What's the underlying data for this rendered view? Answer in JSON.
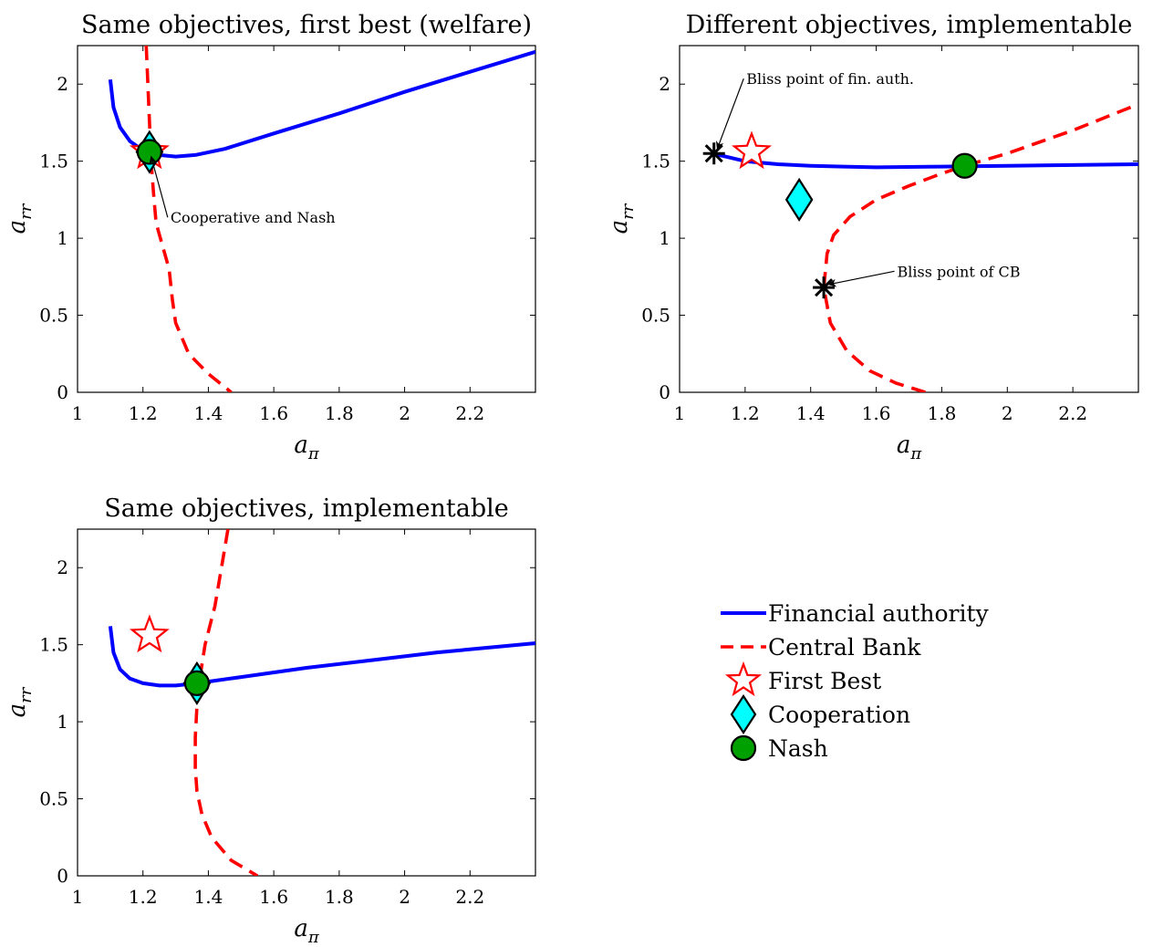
{
  "chart_data": [
    {
      "type": "line",
      "title": "Same objectives, first best (welfare)",
      "xlabel": "a_π",
      "ylabel": "a_rr",
      "xlim": [
        1,
        2.4
      ],
      "ylim": [
        0,
        2.25
      ],
      "xticks": [
        1,
        1.2,
        1.4,
        1.6,
        1.8,
        2,
        2.2
      ],
      "xtick_labels": [
        "1",
        "1.2",
        "1.4",
        "1.6",
        "1.8",
        "2",
        "2.2"
      ],
      "yticks": [
        0,
        0.5,
        1,
        1.5,
        2
      ],
      "ytick_labels": [
        "0",
        "0.5",
        "1",
        "1.5",
        "2"
      ],
      "series": [
        {
          "name": "Financial authority",
          "style": "solid",
          "color": "#0000ff",
          "x": [
            1.1,
            1.11,
            1.13,
            1.16,
            1.2,
            1.25,
            1.3,
            1.36,
            1.45,
            1.6,
            1.8,
            2.0,
            2.2,
            2.4
          ],
          "y": [
            2.03,
            1.85,
            1.72,
            1.63,
            1.57,
            1.54,
            1.53,
            1.54,
            1.58,
            1.68,
            1.81,
            1.95,
            2.08,
            2.21
          ]
        },
        {
          "name": "Central Bank",
          "style": "dashed",
          "color": "#ff0000",
          "x": [
            1.21,
            1.215,
            1.22,
            1.225,
            1.232,
            1.24,
            1.26,
            1.28,
            1.29,
            1.3,
            1.34,
            1.4,
            1.47
          ],
          "y": [
            2.25,
            2.0,
            1.75,
            1.5,
            1.3,
            1.1,
            0.95,
            0.8,
            0.6,
            0.45,
            0.25,
            0.12,
            0
          ]
        }
      ],
      "markers": {
        "first_best": [
          1.22,
          1.56
        ],
        "cooperation": [
          1.22,
          1.56
        ],
        "nash": [
          1.22,
          1.56
        ],
        "star_bliss": []
      },
      "annotations": [
        {
          "text": "Cooperative and Nash",
          "point": [
            1.225,
            1.53
          ],
          "text_at": [
            1.27,
            1.1
          ]
        }
      ]
    },
    {
      "type": "line",
      "title": "Different objectives, implementable",
      "xlabel": "a_π",
      "ylabel": "a_rr",
      "xlim": [
        1,
        2.4
      ],
      "ylim": [
        0,
        2.25
      ],
      "xticks": [
        1,
        1.2,
        1.4,
        1.6,
        1.8,
        2,
        2.2
      ],
      "xtick_labels": [
        "1",
        "1.2",
        "1.4",
        "1.6",
        "1.8",
        "2",
        "2.2"
      ],
      "yticks": [
        0,
        0.5,
        1,
        1.5,
        2
      ],
      "ytick_labels": [
        "0",
        "0.5",
        "1",
        "1.5",
        "2"
      ],
      "series": [
        {
          "name": "Financial authority",
          "style": "solid",
          "color": "#0000ff",
          "x": [
            1.1,
            1.2,
            1.3,
            1.4,
            1.5,
            1.6,
            1.8,
            2.0,
            2.2,
            2.4
          ],
          "y": [
            1.55,
            1.5,
            1.48,
            1.47,
            1.465,
            1.46,
            1.465,
            1.47,
            1.475,
            1.48
          ]
        },
        {
          "name": "Central Bank",
          "style": "dashed",
          "color": "#ff0000",
          "x": [
            1.75,
            1.66,
            1.58,
            1.51,
            1.46,
            1.44,
            1.45,
            1.47,
            1.52,
            1.6,
            1.7,
            1.8,
            1.87,
            2.0,
            2.2,
            2.4
          ],
          "y": [
            0,
            0.06,
            0.14,
            0.27,
            0.45,
            0.68,
            0.9,
            1.02,
            1.14,
            1.25,
            1.34,
            1.42,
            1.47,
            1.55,
            1.7,
            1.87
          ]
        }
      ],
      "markers": {
        "first_best": [
          1.22,
          1.56
        ],
        "cooperation": [
          1.365,
          1.25
        ],
        "nash": [
          1.87,
          1.47
        ],
        "star_bliss": [
          [
            1.105,
            1.55
          ],
          [
            1.44,
            0.68
          ]
        ]
      },
      "annotations": [
        {
          "text": "Bliss point of fin. auth.",
          "point": [
            1.115,
            1.58
          ],
          "text_at": [
            1.19,
            2.0
          ]
        },
        {
          "text": "Bliss point of CB",
          "point": [
            1.455,
            0.7
          ],
          "text_at": [
            1.65,
            0.75
          ]
        }
      ]
    },
    {
      "type": "line",
      "title": "Same objectives, implementable",
      "xlabel": "a_π",
      "ylabel": "a_rr",
      "xlim": [
        1,
        2.4
      ],
      "ylim": [
        0,
        2.25
      ],
      "xticks": [
        1,
        1.2,
        1.4,
        1.6,
        1.8,
        2,
        2.2
      ],
      "xtick_labels": [
        "1",
        "1.2",
        "1.4",
        "1.6",
        "1.8",
        "2",
        "2.2"
      ],
      "yticks": [
        0,
        0.5,
        1,
        1.5,
        2
      ],
      "ytick_labels": [
        "0",
        "0.5",
        "1",
        "1.5",
        "2"
      ],
      "series": [
        {
          "name": "Financial authority",
          "style": "solid",
          "color": "#0000ff",
          "x": [
            1.1,
            1.11,
            1.13,
            1.16,
            1.2,
            1.25,
            1.3,
            1.365,
            1.5,
            1.7,
            1.9,
            2.1,
            2.3,
            2.4
          ],
          "y": [
            1.62,
            1.45,
            1.34,
            1.28,
            1.25,
            1.235,
            1.235,
            1.25,
            1.29,
            1.35,
            1.4,
            1.45,
            1.49,
            1.51
          ]
        },
        {
          "name": "Central Bank",
          "style": "dashed",
          "color": "#ff0000",
          "x": [
            1.46,
            1.44,
            1.42,
            1.39,
            1.375,
            1.365,
            1.36,
            1.36,
            1.365,
            1.38,
            1.41,
            1.47,
            1.55
          ],
          "y": [
            2.25,
            2.0,
            1.75,
            1.5,
            1.3,
            1.1,
            0.9,
            0.7,
            0.55,
            0.4,
            0.25,
            0.1,
            0
          ]
        }
      ],
      "markers": {
        "first_best": [
          1.22,
          1.56
        ],
        "cooperation": [
          1.365,
          1.25
        ],
        "nash": [
          1.365,
          1.25
        ],
        "star_bliss": []
      },
      "annotations": []
    }
  ],
  "legend": [
    {
      "label": "Financial authority",
      "kind": "solid-line",
      "color": "#0000ff"
    },
    {
      "label": "Central Bank",
      "kind": "dashed-line",
      "color": "#ff0000"
    },
    {
      "label": "First Best",
      "kind": "star",
      "color": "#ff0000"
    },
    {
      "label": "Cooperation",
      "kind": "diamond",
      "color": "#00ffff"
    },
    {
      "label": "Nash",
      "kind": "circle",
      "color": "#00a000"
    }
  ],
  "colors": {
    "financial_authority": "#0000ff",
    "central_bank": "#ff0000",
    "cooperation_fill": "#00ffff",
    "nash_fill": "#00a000",
    "bliss_marker": "#000000"
  }
}
